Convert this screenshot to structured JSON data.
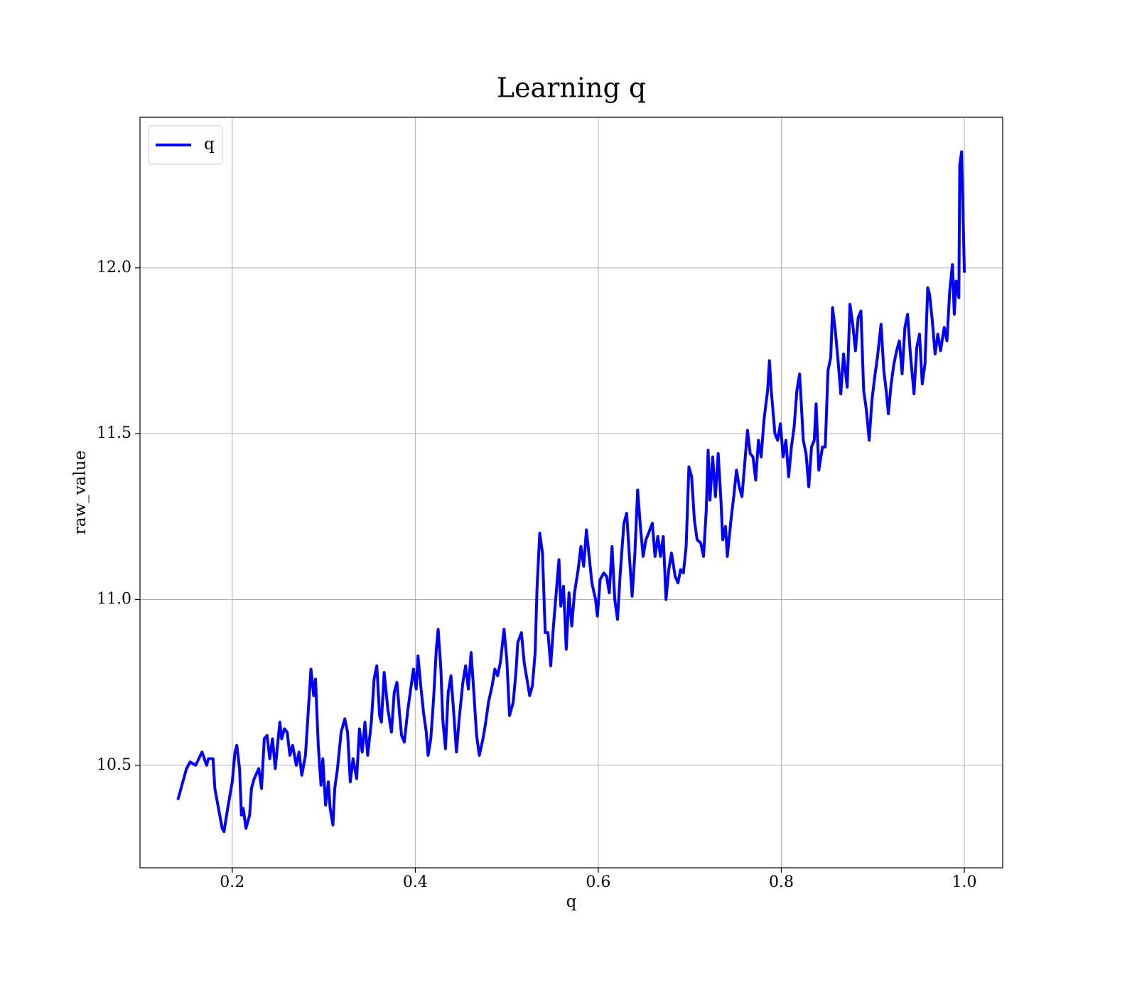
{
  "chart_data": {
    "type": "line",
    "title": "Learning q",
    "xlabel": "q",
    "ylabel": "raw_value",
    "grid": true,
    "legend": "upper left",
    "xlim": [
      0.0992,
      1.0419
    ],
    "ylim": [
      10.191,
      12.454
    ],
    "xticks": [
      0.2,
      0.4,
      0.6,
      0.8,
      {
        "value": 1.0,
        "label": "1.0"
      }
    ],
    "yticks": [
      10.5,
      {
        "value": 11.0,
        "label": "11.0"
      },
      11.5,
      {
        "value": 12.0,
        "label": "12.0"
      }
    ],
    "x": [
      0.141,
      0.15,
      0.154,
      0.16,
      0.167,
      0.172,
      0.174,
      0.179,
      0.181,
      0.185,
      0.189,
      0.191,
      0.195,
      0.2,
      0.203,
      0.205,
      0.208,
      0.21,
      0.212,
      0.215,
      0.219,
      0.221,
      0.224,
      0.229,
      0.232,
      0.235,
      0.238,
      0.241,
      0.244,
      0.247,
      0.252,
      0.254,
      0.257,
      0.26,
      0.263,
      0.266,
      0.27,
      0.273,
      0.276,
      0.28,
      0.283,
      0.286,
      0.289,
      0.291,
      0.294,
      0.297,
      0.299,
      0.302,
      0.305,
      0.307,
      0.31,
      0.312,
      0.315,
      0.319,
      0.323,
      0.326,
      0.329,
      0.332,
      0.336,
      0.339,
      0.342,
      0.345,
      0.348,
      0.352,
      0.355,
      0.358,
      0.361,
      0.363,
      0.366,
      0.37,
      0.374,
      0.377,
      0.38,
      0.383,
      0.385,
      0.388,
      0.392,
      0.395,
      0.398,
      0.401,
      0.403,
      0.406,
      0.409,
      0.412,
      0.414,
      0.417,
      0.42,
      0.423,
      0.425,
      0.428,
      0.43,
      0.433,
      0.436,
      0.439,
      0.442,
      0.445,
      0.448,
      0.452,
      0.455,
      0.458,
      0.461,
      0.464,
      0.467,
      0.47,
      0.474,
      0.477,
      0.48,
      0.484,
      0.487,
      0.49,
      0.493,
      0.497,
      0.5,
      0.503,
      0.507,
      0.51,
      0.512,
      0.516,
      0.519,
      0.522,
      0.525,
      0.528,
      0.531,
      0.533,
      0.536,
      0.539,
      0.542,
      0.545,
      0.548,
      0.551,
      0.554,
      0.557,
      0.559,
      0.562,
      0.565,
      0.568,
      0.571,
      0.574,
      0.578,
      0.581,
      0.584,
      0.587,
      0.59,
      0.593,
      0.597,
      0.599,
      0.602,
      0.606,
      0.609,
      0.612,
      0.615,
      0.618,
      0.621,
      0.624,
      0.628,
      0.631,
      0.634,
      0.637,
      0.64,
      0.643,
      0.646,
      0.649,
      0.652,
      0.655,
      0.659,
      0.662,
      0.665,
      0.668,
      0.671,
      0.674,
      0.677,
      0.68,
      0.684,
      0.687,
      0.69,
      0.693,
      0.696,
      0.699,
      0.702,
      0.705,
      0.708,
      0.712,
      0.715,
      0.718,
      0.72,
      0.722,
      0.725,
      0.728,
      0.731,
      0.734,
      0.736,
      0.739,
      0.741,
      0.745,
      0.748,
      0.751,
      0.754,
      0.757,
      0.76,
      0.763,
      0.766,
      0.769,
      0.772,
      0.775,
      0.778,
      0.781,
      0.785,
      0.787,
      0.789,
      0.793,
      0.796,
      0.799,
      0.802,
      0.805,
      0.808,
      0.811,
      0.814,
      0.817,
      0.82,
      0.824,
      0.827,
      0.83,
      0.833,
      0.836,
      0.838,
      0.841,
      0.845,
      0.848,
      0.851,
      0.854,
      0.856,
      0.859,
      0.862,
      0.865,
      0.868,
      0.872,
      0.875,
      0.878,
      0.881,
      0.884,
      0.887,
      0.89,
      0.893,
      0.896,
      0.899,
      0.902,
      0.905,
      0.909,
      0.912,
      0.915,
      0.917,
      0.92,
      0.923,
      0.926,
      0.929,
      0.932,
      0.935,
      0.938,
      0.941,
      0.945,
      0.948,
      0.951,
      0.954,
      0.957,
      0.96,
      0.962,
      0.965,
      0.968,
      0.971,
      0.974,
      0.978,
      0.981,
      0.984,
      0.987,
      0.989,
      0.991,
      0.994,
      0.995,
      0.997,
      1.0
    ],
    "series": [
      {
        "name": "q",
        "color": "#0000ff",
        "values": [
          10.4,
          10.49,
          10.51,
          10.5,
          10.54,
          10.5,
          10.52,
          10.52,
          10.43,
          10.37,
          10.31,
          10.3,
          10.37,
          10.45,
          10.54,
          10.56,
          10.49,
          10.35,
          10.37,
          10.31,
          10.35,
          10.43,
          10.46,
          10.49,
          10.43,
          10.58,
          10.59,
          10.52,
          10.58,
          10.49,
          10.63,
          10.58,
          10.61,
          10.6,
          10.53,
          10.56,
          10.5,
          10.54,
          10.47,
          10.53,
          10.66,
          10.79,
          10.71,
          10.76,
          10.56,
          10.44,
          10.52,
          10.38,
          10.45,
          10.37,
          10.32,
          10.43,
          10.49,
          10.6,
          10.64,
          10.6,
          10.45,
          10.52,
          10.46,
          10.61,
          10.54,
          10.63,
          10.53,
          10.63,
          10.76,
          10.8,
          10.65,
          10.63,
          10.78,
          10.67,
          10.6,
          10.72,
          10.75,
          10.65,
          10.59,
          10.57,
          10.67,
          10.73,
          10.79,
          10.73,
          10.83,
          10.74,
          10.66,
          10.6,
          10.53,
          10.58,
          10.7,
          10.85,
          10.91,
          10.79,
          10.64,
          10.55,
          10.72,
          10.77,
          10.66,
          10.54,
          10.64,
          10.75,
          10.8,
          10.73,
          10.84,
          10.72,
          10.59,
          10.53,
          10.58,
          10.63,
          10.69,
          10.74,
          10.79,
          10.77,
          10.81,
          10.91,
          10.82,
          10.65,
          10.69,
          10.78,
          10.87,
          10.9,
          10.81,
          10.76,
          10.71,
          10.74,
          10.84,
          11.03,
          11.2,
          11.14,
          10.9,
          10.9,
          10.8,
          10.92,
          11.02,
          11.12,
          10.98,
          11.04,
          10.85,
          11.02,
          10.92,
          11.02,
          11.09,
          11.16,
          11.1,
          11.21,
          11.13,
          11.05,
          11.0,
          10.95,
          11.06,
          11.08,
          11.07,
          11.02,
          11.16,
          11.0,
          10.94,
          11.08,
          11.23,
          11.26,
          11.13,
          11.01,
          11.14,
          11.33,
          11.22,
          11.13,
          11.18,
          11.2,
          11.23,
          11.13,
          11.19,
          11.13,
          11.19,
          11.0,
          11.09,
          11.14,
          11.07,
          11.05,
          11.09,
          11.08,
          11.16,
          11.4,
          11.37,
          11.24,
          11.18,
          11.17,
          11.13,
          11.27,
          11.45,
          11.3,
          11.43,
          11.31,
          11.44,
          11.3,
          11.18,
          11.22,
          11.13,
          11.24,
          11.31,
          11.39,
          11.34,
          11.31,
          11.41,
          11.51,
          11.44,
          11.43,
          11.36,
          11.48,
          11.43,
          11.54,
          11.63,
          11.72,
          11.63,
          11.5,
          11.48,
          11.53,
          11.43,
          11.48,
          11.37,
          11.46,
          11.52,
          11.63,
          11.68,
          11.48,
          11.44,
          11.34,
          11.46,
          11.48,
          11.59,
          11.39,
          11.46,
          11.46,
          11.69,
          11.73,
          11.88,
          11.81,
          11.72,
          11.62,
          11.74,
          11.64,
          11.89,
          11.83,
          11.75,
          11.85,
          11.87,
          11.63,
          11.57,
          11.48,
          11.6,
          11.67,
          11.73,
          11.83,
          11.69,
          11.62,
          11.56,
          11.65,
          11.71,
          11.75,
          11.78,
          11.68,
          11.82,
          11.86,
          11.74,
          11.62,
          11.76,
          11.8,
          11.65,
          11.71,
          11.94,
          11.92,
          11.84,
          11.74,
          11.8,
          11.75,
          11.82,
          11.78,
          11.93,
          12.01,
          11.86,
          11.96,
          11.91,
          12.31,
          12.35,
          11.99
        ]
      }
    ]
  }
}
